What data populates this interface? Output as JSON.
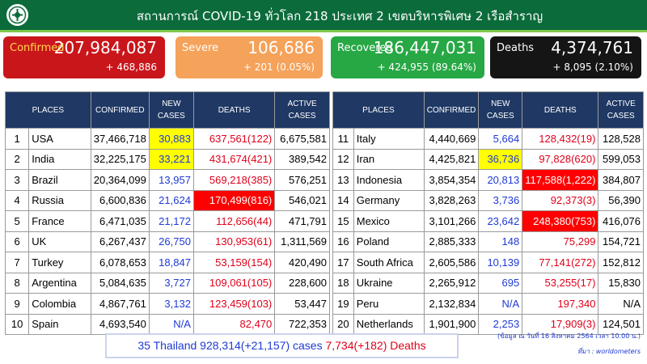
{
  "header": {
    "title": "สถานการณ์ COVID-19 ทั่วโลก 218 ประเทศ 2 เขตบริหารพิเศษ 2 เรือสำราญ"
  },
  "summary": {
    "confirmed": {
      "label": "Confirmed",
      "value": "207,984,087",
      "delta": "+ 468,886",
      "color": "#c9161b"
    },
    "severe": {
      "label": "Severe",
      "value": "106,686",
      "delta": "+ 201 (0.05%)",
      "color": "#f5a25a"
    },
    "recovered": {
      "label": "Recovered",
      "value": "186,447,031",
      "delta": "+ 424,955 (89.64%)",
      "color": "#27a845"
    },
    "deaths": {
      "label": "Deaths",
      "value": "4,374,761",
      "delta": "+ 8,095 (2.10%)",
      "color": "#151515"
    }
  },
  "table_headers": {
    "places": "PLACES",
    "confirmed": "CONFIRMED",
    "new_cases": "NEW CASES",
    "deaths": "DEATHS",
    "active_cases": "ACTIVE CASES"
  },
  "left_rows": [
    {
      "rank": "1",
      "place": "USA",
      "confirmed": "37,466,718",
      "new": "30,883",
      "deaths": "637,561(122)",
      "active": "6,675,581",
      "new_hl": "yellow"
    },
    {
      "rank": "2",
      "place": "India",
      "confirmed": "32,225,175",
      "new": "33,221",
      "deaths": "431,674(421)",
      "active": "389,542",
      "new_hl": "yellow"
    },
    {
      "rank": "3",
      "place": "Brazil",
      "confirmed": "20,364,099",
      "new": "13,957",
      "deaths": "569,218(385)",
      "active": "576,251"
    },
    {
      "rank": "4",
      "place": "Russia",
      "confirmed": "6,600,836",
      "new": "21,624",
      "deaths": "170,499(816)",
      "active": "546,021",
      "death_hl": "red"
    },
    {
      "rank": "5",
      "place": "France",
      "confirmed": "6,471,035",
      "new": "21,172",
      "deaths": "112,656(44)",
      "active": "471,791"
    },
    {
      "rank": "6",
      "place": "UK",
      "confirmed": "6,267,437",
      "new": "26,750",
      "deaths": "130,953(61)",
      "active": "1,311,569"
    },
    {
      "rank": "7",
      "place": "Turkey",
      "confirmed": "6,078,653",
      "new": "18,847",
      "deaths": "53,159(154)",
      "active": "420,490"
    },
    {
      "rank": "8",
      "place": "Argentina",
      "confirmed": "5,084,635",
      "new": "3,727",
      "deaths": "109,061(105)",
      "active": "228,600"
    },
    {
      "rank": "9",
      "place": "Colombia",
      "confirmed": "4,867,761",
      "new": "3,132",
      "deaths": "123,459(103)",
      "active": "53,447"
    },
    {
      "rank": "10",
      "place": "Spain",
      "confirmed": "4,693,540",
      "new": "N/A",
      "deaths": "82,470",
      "active": "722,353"
    }
  ],
  "right_rows": [
    {
      "rank": "11",
      "place": "Italy",
      "confirmed": "4,440,669",
      "new": "5,664",
      "deaths": "128,432(19)",
      "active": "128,528"
    },
    {
      "rank": "12",
      "place": "Iran",
      "confirmed": "4,425,821",
      "new": "36,736",
      "deaths": "97,828(620)",
      "active": "599,053",
      "new_hl": "yellow"
    },
    {
      "rank": "13",
      "place": "Indonesia",
      "confirmed": "3,854,354",
      "new": "20,813",
      "deaths": "117,588(1,222)",
      "active": "384,807",
      "death_hl": "red"
    },
    {
      "rank": "14",
      "place": "Germany",
      "confirmed": "3,828,263",
      "new": "3,736",
      "deaths": "92,373(3)",
      "active": "56,390"
    },
    {
      "rank": "15",
      "place": "Mexico",
      "confirmed": "3,101,266",
      "new": "23,642",
      "deaths": "248,380(753)",
      "active": "416,076",
      "death_hl": "red"
    },
    {
      "rank": "16",
      "place": "Poland",
      "confirmed": "2,885,333",
      "new": "148",
      "deaths": "75,299",
      "active": "154,721"
    },
    {
      "rank": "17",
      "place": "South Africa",
      "confirmed": "2,605,586",
      "new": "10,139",
      "deaths": "77,141(272)",
      "active": "152,812"
    },
    {
      "rank": "18",
      "place": "Ukraine",
      "confirmed": "2,265,912",
      "new": "695",
      "deaths": "53,255(17)",
      "active": "15,830"
    },
    {
      "rank": "19",
      "place": "Peru",
      "confirmed": "2,132,834",
      "new": "N/A",
      "deaths": "197,340",
      "active": "N/A"
    },
    {
      "rank": "20",
      "place": "Netherlands",
      "confirmed": "1,901,900",
      "new": "2,253",
      "deaths": "17,909(3)",
      "active": "124,501"
    }
  ],
  "thailand": {
    "cases_text": "35 Thailand 928,314(+21,157) cases",
    "deaths_text": "7,734(+182) Deaths"
  },
  "source": {
    "date_note": "(ข้อมูล ณ วันที่ 16 สิงหาคม 2564 เวลา 10.00 น.)",
    "ref": "ที่มา : worldometers"
  },
  "colors": {
    "header_bg": "#0b6b3a",
    "table_header_bg": "#1f3864",
    "new_cases_text": "#1f3ad4",
    "deaths_text": "#e0001a",
    "highlight_yellow": "#ffff00",
    "highlight_red": "#ff0000"
  },
  "icons": {
    "logo": "department-of-disease-control-logo"
  }
}
